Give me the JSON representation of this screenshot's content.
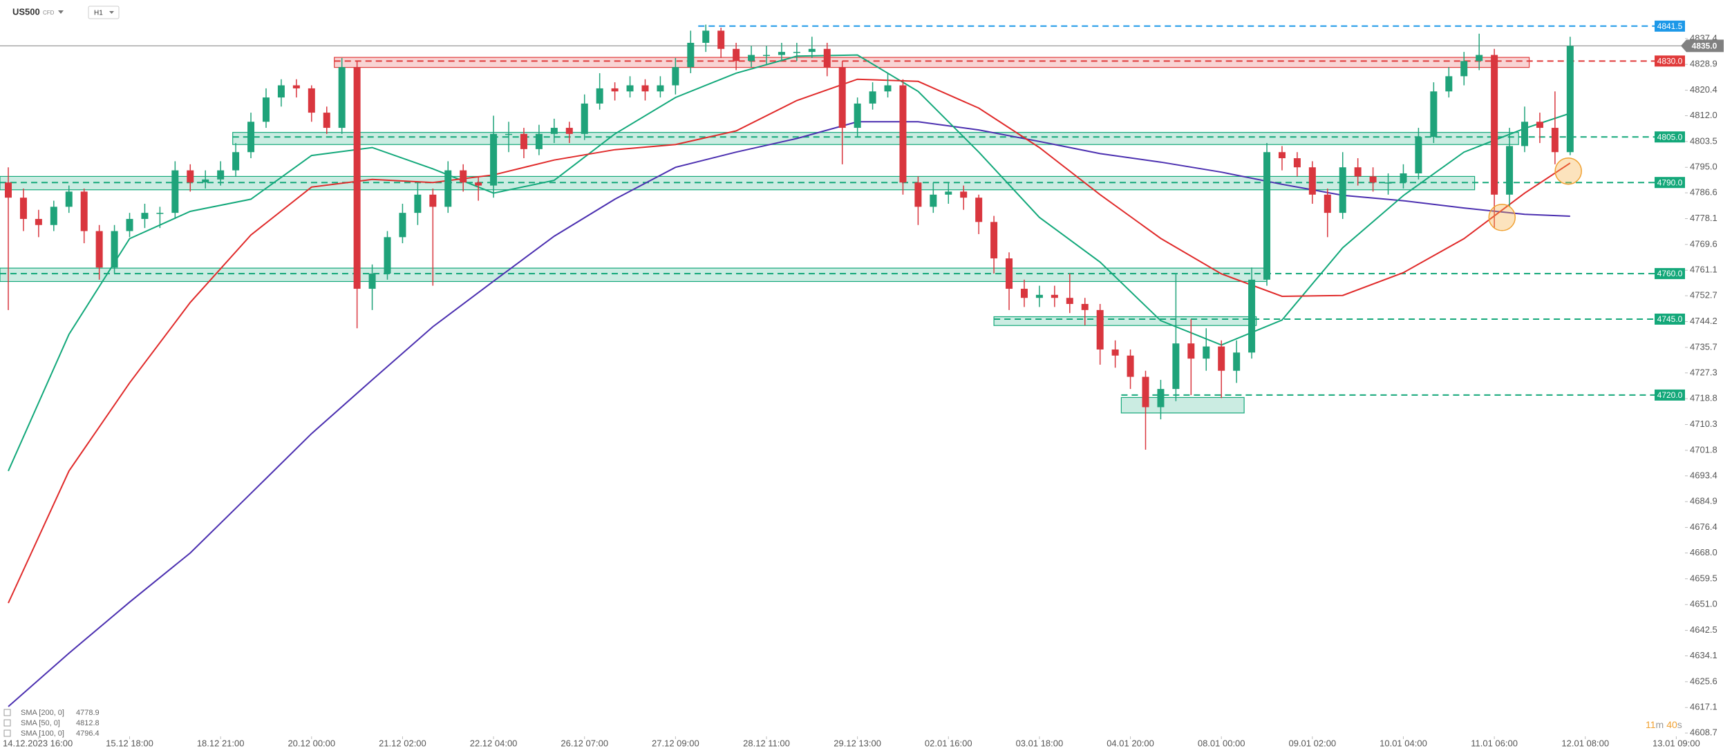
{
  "header": {
    "symbol": "US500",
    "instrument": "CFD",
    "timeframe": "H1"
  },
  "timer": {
    "minutes": "11",
    "minutes_unit": "m",
    "seconds": "40",
    "seconds_unit": "s"
  },
  "chart_data": {
    "type": "candlestick",
    "ylim": [
      4607.6,
      4850.1
    ],
    "yticks": [
      4837.4,
      4828.9,
      4820.4,
      {
        "value": 4812,
        "label": "4812.0"
      },
      4803.5,
      {
        "value": 4795,
        "label": "4795.0"
      },
      4786.6,
      4778.1,
      4769.6,
      4761.1,
      4752.7,
      4744.2,
      4735.7,
      4727.3,
      4718.8,
      4710.3,
      4701.8,
      4693.4,
      4684.9,
      4676.4,
      {
        "value": 4668,
        "label": "4668.0"
      },
      4659.5,
      {
        "value": 4651,
        "label": "4651.0"
      },
      4642.5,
      4634.1,
      4625.6,
      4617.1,
      4608.7
    ],
    "x_labels": [
      "14.12.2023 16:00",
      "15.12 18:00",
      "18.12 21:00",
      "20.12 00:00",
      "21.12 02:00",
      "22.12 04:00",
      "26.12 07:00",
      "27.12 09:00",
      "28.12 11:00",
      "29.12 13:00",
      "02.01 16:00",
      "03.01 18:00",
      "04.01 20:00",
      "08.01 00:00",
      "09.01 02:00",
      "10.01 04:00",
      "11.01 06:00",
      "12.01 08:00",
      "13.01 09:00"
    ],
    "up_color": "#1fa37a",
    "down_color": "#d9363e",
    "candles": [
      [
        4790,
        4795,
        4748,
        4785
      ],
      [
        4785,
        4788,
        4774,
        4778
      ],
      [
        4778,
        4781,
        4772,
        4776
      ],
      [
        4776,
        4784,
        4774,
        4782
      ],
      [
        4782,
        4789,
        4780,
        4787
      ],
      [
        4787,
        4788,
        4770,
        4774
      ],
      [
        4774,
        4776,
        4758,
        4762
      ],
      [
        4762,
        4776,
        4760,
        4774
      ],
      [
        4774,
        4780,
        4772,
        4778
      ],
      [
        4778,
        4783,
        4775,
        4780
      ],
      [
        4780,
        4782,
        4775,
        4780
      ],
      [
        4780,
        4797,
        4778,
        4794
      ],
      [
        4794,
        4796,
        4787,
        4790
      ],
      [
        4790,
        4794,
        4788,
        4791
      ],
      [
        4791,
        4797,
        4789,
        4794
      ],
      [
        4794,
        4803,
        4792,
        4800
      ],
      [
        4800,
        4813,
        4798,
        4810
      ],
      [
        4810,
        4821,
        4808,
        4818
      ],
      [
        4818,
        4824,
        4815,
        4822
      ],
      [
        4822,
        4824,
        4818,
        4821
      ],
      [
        4821,
        4822,
        4810,
        4813
      ],
      [
        4813,
        4815,
        4806,
        4808
      ],
      [
        4808,
        4831,
        4806,
        4828
      ],
      [
        4828,
        4830,
        4742,
        4755
      ],
      [
        4755,
        4763,
        4748,
        4760
      ],
      [
        4760,
        4774,
        4758,
        4772
      ],
      [
        4772,
        4783,
        4770,
        4780
      ],
      [
        4780,
        4790,
        4776,
        4786
      ],
      [
        4786,
        4788,
        4756,
        4782
      ],
      [
        4782,
        4797,
        4780,
        4794
      ],
      [
        4794,
        4796,
        4787,
        4790
      ],
      [
        4790,
        4792,
        4784,
        4789
      ],
      [
        4789,
        4812,
        4785,
        4806
      ],
      [
        4806,
        4810,
        4800,
        4806
      ],
      [
        4806,
        4808,
        4798,
        4801
      ],
      [
        4801,
        4809,
        4799,
        4806
      ],
      [
        4806,
        4811,
        4803,
        4808
      ],
      [
        4808,
        4810,
        4803,
        4806
      ],
      [
        4806,
        4819,
        4804,
        4816
      ],
      [
        4816,
        4826,
        4814,
        4821
      ],
      [
        4821,
        4823,
        4817,
        4820
      ],
      [
        4820,
        4825,
        4818,
        4822
      ],
      [
        4822,
        4824,
        4817,
        4820
      ],
      [
        4820,
        4825,
        4818,
        4822
      ],
      [
        4822,
        4831,
        4819,
        4828
      ],
      [
        4828,
        4840,
        4826,
        4836
      ],
      [
        4836,
        4842,
        4833,
        4840
      ],
      [
        4840,
        4841,
        4831,
        4834
      ],
      [
        4834,
        4836,
        4827,
        4830
      ],
      [
        4830,
        4835,
        4828,
        4832
      ],
      [
        4832,
        4835,
        4829,
        4832
      ],
      [
        4832,
        4836,
        4830,
        4833
      ],
      [
        4833,
        4836,
        4830,
        4833
      ],
      [
        4833,
        4838,
        4831,
        4834
      ],
      [
        4834,
        4836,
        4825,
        4828
      ],
      [
        4828,
        4830,
        4796,
        4808
      ],
      [
        4808,
        4818,
        4805,
        4816
      ],
      [
        4816,
        4823,
        4814,
        4820
      ],
      [
        4820,
        4826,
        4818,
        4822
      ],
      [
        4822,
        4824,
        4786,
        4790
      ],
      [
        4790,
        4792,
        4776,
        4782
      ],
      [
        4782,
        4790,
        4780,
        4786
      ],
      [
        4786,
        4790,
        4783,
        4787
      ],
      [
        4787,
        4789,
        4781,
        4785
      ],
      [
        4785,
        4786,
        4773,
        4777
      ],
      [
        4777,
        4779,
        4760,
        4765
      ],
      [
        4765,
        4767,
        4748,
        4755
      ],
      [
        4755,
        4758,
        4749,
        4752
      ],
      [
        4752,
        4756,
        4749,
        4753
      ],
      [
        4753,
        4756,
        4749,
        4752
      ],
      [
        4752,
        4760,
        4747,
        4750
      ],
      [
        4750,
        4752,
        4743,
        4748
      ],
      [
        4748,
        4750,
        4730,
        4735
      ],
      [
        4735,
        4738,
        4729,
        4733
      ],
      [
        4733,
        4735,
        4722,
        4726
      ],
      [
        4726,
        4728,
        4702,
        4716
      ],
      [
        4716,
        4725,
        4712,
        4722
      ],
      [
        4722,
        4760,
        4718,
        4737
      ],
      [
        4737,
        4745,
        4720,
        4732
      ],
      [
        4732,
        4742,
        4728,
        4736
      ],
      [
        4736,
        4738,
        4719,
        4728
      ],
      [
        4728,
        4738,
        4724,
        4734
      ],
      [
        4734,
        4762,
        4732,
        4758
      ],
      [
        4758,
        4803,
        4756,
        4800
      ],
      [
        4800,
        4802,
        4794,
        4798
      ],
      [
        4798,
        4800,
        4792,
        4795
      ],
      [
        4795,
        4797,
        4783,
        4786
      ],
      [
        4786,
        4788,
        4772,
        4780
      ],
      [
        4780,
        4800,
        4778,
        4795
      ],
      [
        4795,
        4798,
        4789,
        4792
      ],
      [
        4792,
        4795,
        4787,
        4790
      ],
      [
        4790,
        4793,
        4786,
        4790
      ],
      [
        4790,
        4796,
        4788,
        4793
      ],
      [
        4793,
        4808,
        4791,
        4805
      ],
      [
        4805,
        4823,
        4803,
        4820
      ],
      [
        4820,
        4828,
        4818,
        4825
      ],
      [
        4825,
        4833,
        4822,
        4830
      ],
      [
        4830,
        4839,
        4827,
        4832
      ],
      [
        4832,
        4834,
        4775,
        4786
      ],
      [
        4786,
        4808,
        4782,
        4802
      ],
      [
        4802,
        4815,
        4800,
        4810
      ],
      [
        4810,
        4813,
        4803,
        4808
      ],
      [
        4808,
        4820,
        4796,
        4800
      ],
      [
        4800,
        4838,
        4799,
        4835
      ]
    ],
    "series_x": [
      0,
      4,
      8,
      12,
      16,
      20,
      24,
      28,
      32,
      36,
      40,
      44,
      48,
      52,
      56,
      60,
      64,
      68,
      72,
      76,
      80,
      84,
      88,
      92,
      96,
      100,
      103
    ],
    "series": [
      {
        "name": "SMA [200, 0]",
        "color": "#4b2fb0",
        "last_value": 4778.9,
        "values": [
          4617.4,
          4635,
          4651.8,
          4668,
          4687.6,
          4707.3,
          4725,
          4742.5,
          4757.5,
          4772.3,
          4784.5,
          4795,
          4800,
          4804.5,
          4810,
          4810,
          4807.3,
          4803.5,
          4799.5,
          4796.7,
          4793.4,
          4789.4,
          4785.8,
          4784,
          4781.6,
          4779.5,
          4778.9
        ]
      },
      {
        "name": "SMA [50, 0]",
        "color": "#12a87a",
        "last_value": 4812.8,
        "values": [
          4695,
          4740,
          4771.5,
          4780.5,
          4784.5,
          4798.9,
          4801.5,
          4794.5,
          4786.5,
          4790.7,
          4806,
          4818,
          4826,
          4831.6,
          4832,
          4820,
          4800,
          4778.5,
          4763.8,
          4744.5,
          4736.5,
          4744.7,
          4768.5,
          4785.7,
          4800,
          4807.8,
          4812.8
        ]
      },
      {
        "name": "SMA [100, 0]",
        "color": "#e02a2a",
        "last_value": 4796.4,
        "values": [
          4651.5,
          4695,
          4724,
          4750.5,
          4772.7,
          4788.5,
          4791,
          4790,
          4792.5,
          4797.4,
          4800.8,
          4802.5,
          4807,
          4817,
          4824,
          4823.3,
          4814.5,
          4801.5,
          4786,
          4771.6,
          4759.9,
          4752.5,
          4752.8,
          4760.3,
          4771.5,
          4786.5,
          4796.4
        ]
      }
    ],
    "current_price": {
      "value": 4835,
      "label": "4835.0"
    },
    "current_color": "#808080",
    "levels": [
      {
        "price": 4841.5,
        "color": "#1c98e8"
      },
      {
        "price": {
          "value": 4830,
          "label": "4830.0"
        },
        "color": "#e03a3a"
      },
      {
        "price": {
          "value": 4805,
          "label": "4805.0"
        },
        "color": "#14a87a"
      },
      {
        "price": {
          "value": 4790,
          "label": "4790.0"
        },
        "color": "#14a87a"
      },
      {
        "price": {
          "value": 4760,
          "label": "4760.0"
        },
        "color": "#14a87a"
      },
      {
        "price": {
          "value": 4745,
          "label": "4745.0"
        },
        "color": "#14a87a"
      },
      {
        "price": {
          "value": 4720,
          "label": "4720.0"
        },
        "color": "#14a87a"
      }
    ],
    "zones": [
      {
        "low": 4827.9,
        "high": 4831.2,
        "color": "#e03a3a"
      },
      {
        "low": 4802.5,
        "high": 4806.5,
        "color": "#14a87a"
      },
      {
        "low": 4787.6,
        "high": 4792,
        "color": "#14a87a"
      },
      {
        "low": 4757.4,
        "high": 4761.8,
        "color": "#14a87a"
      },
      {
        "low": 4742.9,
        "high": 4745.8,
        "color": "#14a87a"
      },
      {
        "low": 4714.1,
        "high": 4719.2,
        "color": "#14a87a"
      }
    ]
  }
}
